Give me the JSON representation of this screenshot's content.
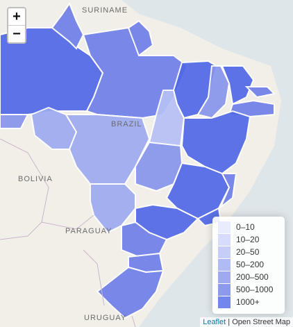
{
  "zoom": {
    "in_label": "+",
    "out_label": "−"
  },
  "labels": {
    "suriname": "SURINAME",
    "brazil": "BRAZIL",
    "bolivia": "BOLIVIA",
    "paraguay": "PARAGUAY",
    "uruguay": "URUGUAY"
  },
  "legend": {
    "items": [
      {
        "label": "0–10",
        "color": "#e3e7ff"
      },
      {
        "label": "10–20",
        "color": "#cdd3fb"
      },
      {
        "label": "20–50",
        "color": "#b6c0f6"
      },
      {
        "label": "50–200",
        "color": "#9eaaf0"
      },
      {
        "label": "200–500",
        "color": "#8794ec"
      },
      {
        "label": "500–1000",
        "color": "#6f80e8"
      },
      {
        "label": "1000+",
        "color": "#5068e6"
      }
    ]
  },
  "attribution": {
    "leaflet": "Leaflet",
    "sep": " | ",
    "osm": "Open Street Map"
  },
  "colors": {
    "land": "#f2efe9",
    "water": "#aad3df",
    "border": "#ffffff"
  }
}
